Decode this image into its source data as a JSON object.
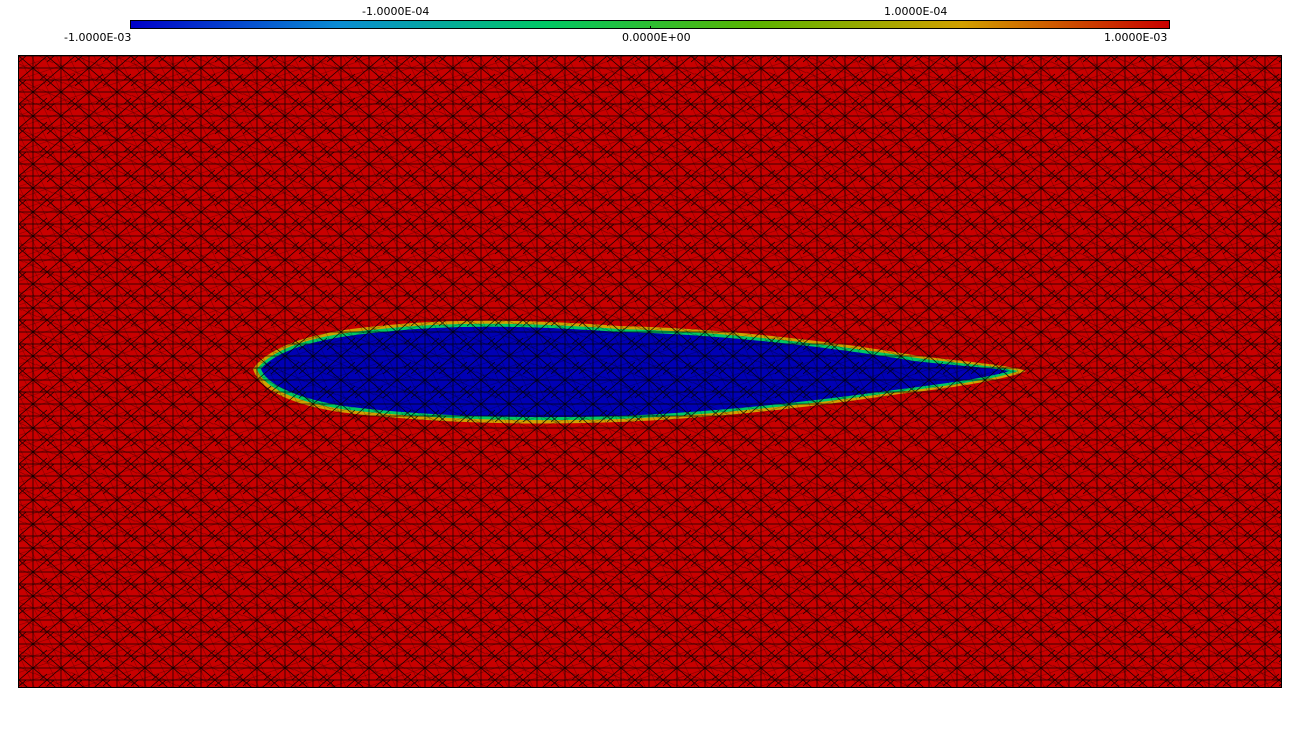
{
  "colorbar": {
    "min_label": "-1.0000E-03",
    "mid_label": "0.0000E+00",
    "max_label": "1.0000E-03",
    "neg_small_label": "-1.0000E-04",
    "pos_small_label": "1.0000E-04",
    "colors": [
      "#0000c8",
      "#0a8cd4",
      "#00c864",
      "#5ab400",
      "#d2a000",
      "#c80000"
    ]
  },
  "field": {
    "background_color": "#c80000",
    "inclusion_color": "#0000b4",
    "mesh_color": "#000000"
  }
}
